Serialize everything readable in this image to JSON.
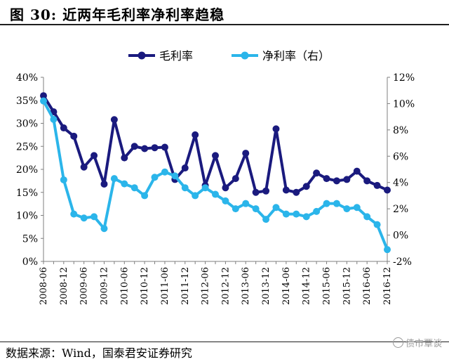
{
  "header": {
    "title": "图 30:   近两年毛利率净利率趋稳"
  },
  "footer": {
    "source": "数据来源：Wind，国泰君安证券研究",
    "watermark": "债市覃谈"
  },
  "chart_data": {
    "type": "line",
    "title": "近两年毛利率净利率趋稳",
    "categories": [
      "2008-06",
      "2008-09",
      "2008-12",
      "2009-03",
      "2009-06",
      "2009-09",
      "2009-12",
      "2010-03",
      "2010-06",
      "2010-09",
      "2010-12",
      "2011-03",
      "2011-06",
      "2011-09",
      "2011-12",
      "2012-03",
      "2012-06",
      "2012-09",
      "2012-12",
      "2013-03",
      "2013-06",
      "2013-09",
      "2013-12",
      "2014-03",
      "2014-06",
      "2014-09",
      "2014-12",
      "2015-03",
      "2015-06",
      "2015-09",
      "2015-12",
      "2016-03",
      "2016-06",
      "2016-09",
      "2016-12"
    ],
    "x_tick_labels": [
      "2008-06",
      "2008-12",
      "2009-06",
      "2009-12",
      "2010-06",
      "2010-12",
      "2011-06",
      "2011-12",
      "2012-06",
      "2012-12",
      "2013-06",
      "2013-12",
      "2014-06",
      "2014-12",
      "2015-06",
      "2015-12",
      "2016-06",
      "2016-12"
    ],
    "series": [
      {
        "name": "毛利率",
        "axis": "left",
        "color": "#1a1a7e",
        "values": [
          36.0,
          32.5,
          29.0,
          27.2,
          20.5,
          23.0,
          16.8,
          30.8,
          22.5,
          25.0,
          24.5,
          24.7,
          24.8,
          17.8,
          20.3,
          27.5,
          16.5,
          23.0,
          16.0,
          18.0,
          23.5,
          15.0,
          15.3,
          28.8,
          15.5,
          15.0,
          16.3,
          19.2,
          18.0,
          17.5,
          17.8,
          19.6,
          17.5,
          16.5,
          15.5
        ]
      },
      {
        "name": "净利率（右）",
        "axis": "right",
        "color": "#2bb5ea",
        "values": [
          10.2,
          8.8,
          4.2,
          1.6,
          1.3,
          1.4,
          0.5,
          4.3,
          3.9,
          3.6,
          3.0,
          4.4,
          4.8,
          4.5,
          3.6,
          3.0,
          3.6,
          3.1,
          2.6,
          2.0,
          2.4,
          2.0,
          1.2,
          2.1,
          1.6,
          1.6,
          1.4,
          1.8,
          2.4,
          2.4,
          2.0,
          2.1,
          1.4,
          0.8,
          -1.1
        ]
      }
    ],
    "ylim_left": [
      0,
      40
    ],
    "ylim_right": [
      -2,
      12
    ],
    "yticks_left": [
      "0%",
      "5%",
      "10%",
      "15%",
      "20%",
      "25%",
      "30%",
      "35%",
      "40%"
    ],
    "yticks_right": [
      "-2%",
      "0%",
      "2%",
      "4%",
      "6%",
      "8%",
      "10%",
      "12%"
    ],
    "legend": [
      "毛利率",
      "净利率（右）"
    ],
    "legend_position": "top-center"
  }
}
